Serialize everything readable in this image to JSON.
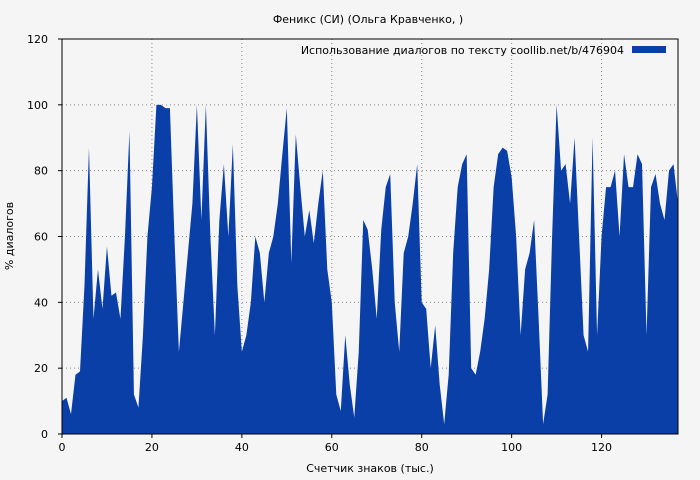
{
  "chart_data": {
    "type": "area",
    "title": "Феникс (СИ) (Ольга Кравченко,  )",
    "xlabel": "Счетчик знаков (тыс.)",
    "ylabel": "% диалогов",
    "xlim": [
      0,
      137
    ],
    "ylim": [
      0,
      120
    ],
    "x_ticks": [
      0,
      20,
      40,
      60,
      80,
      100,
      120
    ],
    "y_ticks": [
      0,
      20,
      40,
      60,
      80,
      100,
      120
    ],
    "grid": true,
    "legend_position": "top-right",
    "series": [
      {
        "name": "Использование диалогов по тексту  coollib.net/b/476904",
        "color": "#0a3fa8",
        "x": [
          0,
          1,
          2,
          3,
          4,
          5,
          6,
          7,
          8,
          9,
          10,
          11,
          12,
          13,
          14,
          15,
          16,
          17,
          18,
          19,
          20,
          21,
          22,
          23,
          24,
          25,
          26,
          27,
          28,
          29,
          30,
          31,
          32,
          33,
          34,
          35,
          36,
          37,
          38,
          39,
          40,
          41,
          42,
          43,
          44,
          45,
          46,
          47,
          48,
          49,
          50,
          51,
          52,
          53,
          54,
          55,
          56,
          57,
          58,
          59,
          60,
          61,
          62,
          63,
          64,
          65,
          66,
          67,
          68,
          69,
          70,
          71,
          72,
          73,
          74,
          75,
          76,
          77,
          78,
          79,
          80,
          81,
          82,
          83,
          84,
          85,
          86,
          87,
          88,
          89,
          90,
          91,
          92,
          93,
          94,
          95,
          96,
          97,
          98,
          99,
          100,
          101,
          102,
          103,
          104,
          105,
          106,
          107,
          108,
          109,
          110,
          111,
          112,
          113,
          114,
          115,
          116,
          117,
          118,
          119,
          120,
          121,
          122,
          123,
          124,
          125,
          126,
          127,
          128,
          129,
          130,
          131,
          132,
          133,
          134,
          135,
          136,
          137
        ],
        "y": [
          10,
          11,
          6,
          18,
          19,
          45,
          87,
          35,
          50,
          38,
          57,
          42,
          43,
          35,
          60,
          92,
          12,
          8,
          30,
          60,
          75,
          100,
          100,
          99,
          99,
          60,
          25,
          40,
          55,
          70,
          100,
          65,
          100,
          60,
          30,
          65,
          82,
          60,
          88,
          45,
          25,
          30,
          40,
          60,
          55,
          40,
          55,
          60,
          70,
          85,
          99,
          52,
          91,
          75,
          60,
          68,
          58,
          70,
          80,
          50,
          40,
          12,
          7,
          30,
          15,
          5,
          25,
          65,
          62,
          50,
          35,
          62,
          75,
          79,
          40,
          25,
          55,
          60,
          70,
          82,
          40,
          38,
          20,
          33,
          15,
          3,
          18,
          55,
          75,
          82,
          85,
          20,
          18,
          25,
          35,
          50,
          75,
          85,
          87,
          86,
          78,
          60,
          30,
          50,
          55,
          65,
          35,
          3,
          12,
          60,
          100,
          80,
          82,
          70,
          90,
          60,
          30,
          25,
          90,
          30,
          60,
          75,
          75,
          80,
          60,
          85,
          75,
          75,
          85,
          82,
          30,
          75,
          79,
          70,
          65,
          80,
          82,
          70
        ],
        "fill": "#0a3fa8"
      }
    ]
  }
}
